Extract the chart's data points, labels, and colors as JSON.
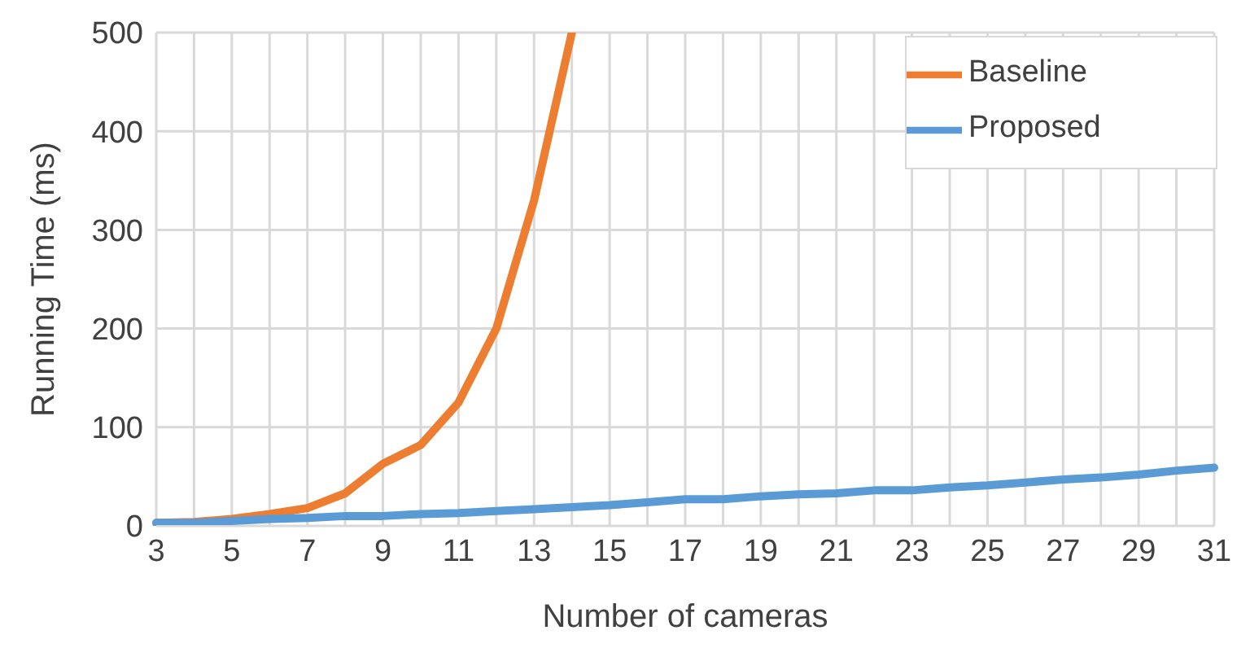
{
  "chart_data": {
    "type": "line",
    "xlabel": "Number of cameras",
    "ylabel": "Running Time (ms)",
    "categories": [
      "3",
      null,
      "5",
      null,
      "7",
      null,
      "9",
      null,
      "11",
      null,
      "13",
      null,
      "15",
      null,
      "17",
      null,
      "19",
      null,
      "21",
      null,
      "23",
      null,
      "25",
      null,
      "27",
      null,
      "29",
      null,
      "31"
    ],
    "series": [
      {
        "name": "Baseline",
        "color": "#ed7d31",
        "values": [
          3,
          4,
          7,
          12,
          18,
          33,
          63,
          82,
          125,
          200,
          330,
          500,
          null,
          null,
          null,
          null,
          null,
          null,
          null,
          null,
          null,
          null,
          null,
          null,
          null,
          null,
          null,
          null,
          null
        ]
      },
      {
        "name": "Proposed",
        "color": "#5b9bd5",
        "values": [
          3,
          3,
          5,
          7,
          8,
          10,
          10,
          12,
          13,
          15,
          17,
          19,
          21,
          24,
          27,
          27,
          30,
          32,
          33,
          36,
          36,
          39,
          41,
          44,
          47,
          49,
          52,
          56,
          59
        ]
      }
    ],
    "ylim": [
      0,
      500
    ],
    "yticks": [
      0,
      100,
      200,
      300,
      400,
      500
    ],
    "grid": true,
    "legend": "top right",
    "marker": "none",
    "line_style": "solid"
  }
}
